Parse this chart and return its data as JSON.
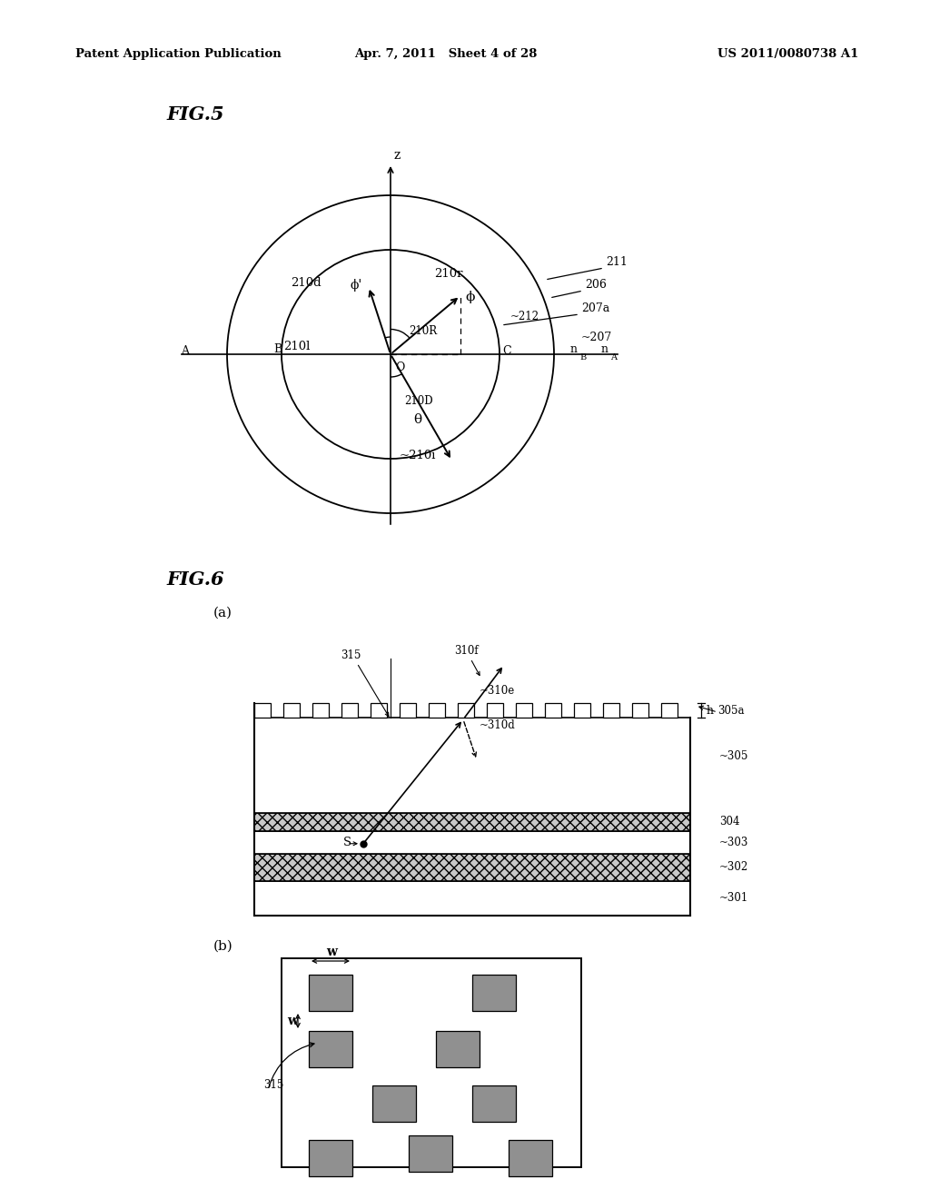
{
  "bg_color": "#ffffff",
  "header_left": "Patent Application Publication",
  "header_mid": "Apr. 7, 2011   Sheet 4 of 28",
  "header_right": "US 2011/0080738 A1",
  "fig5_label": "FIG.5",
  "fig6_label": "FIG.6",
  "fig6a_label": "(a)",
  "fig6b_label": "(b)"
}
